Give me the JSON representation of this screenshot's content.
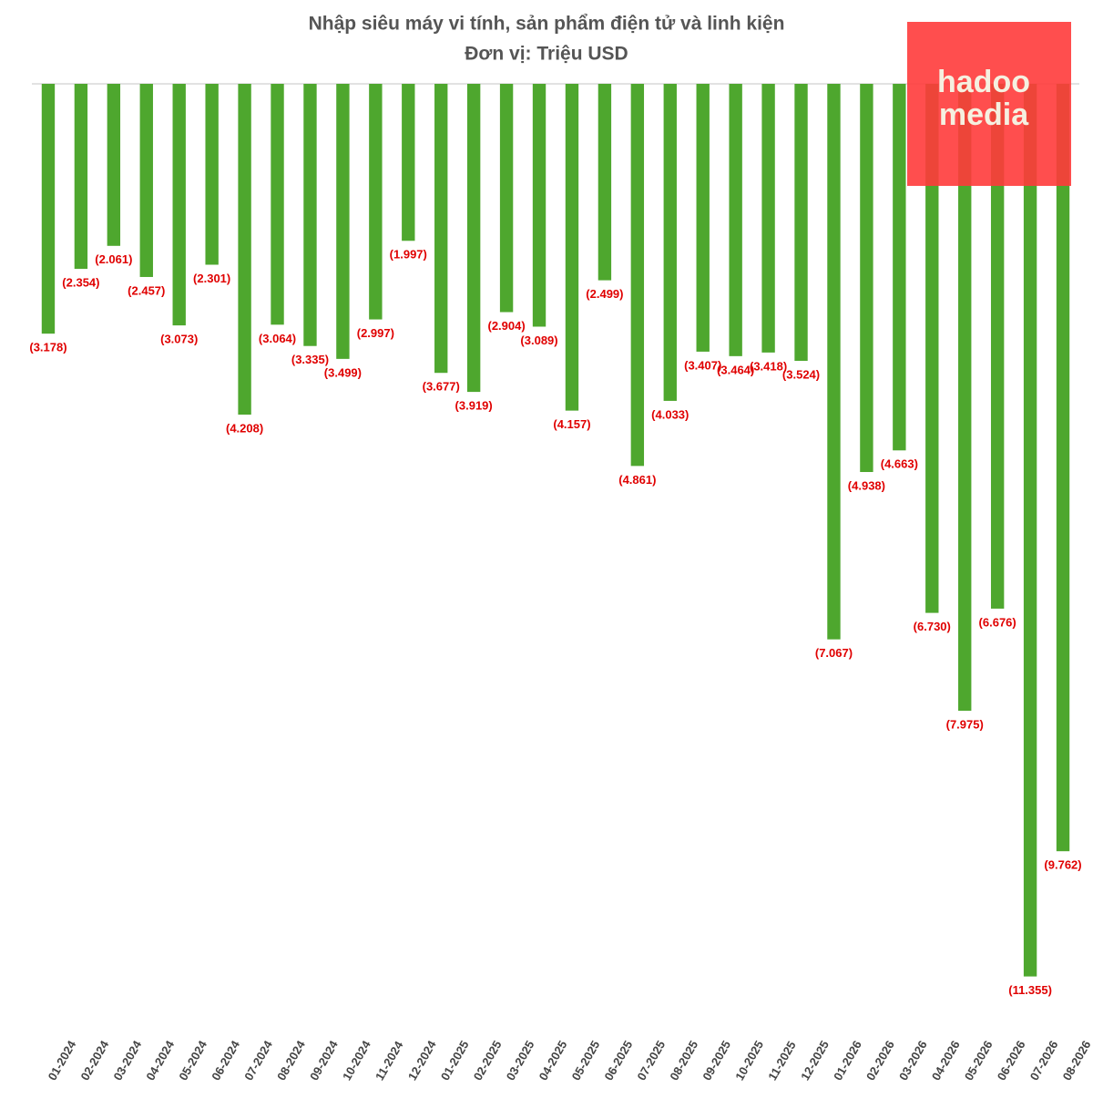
{
  "chart_data": {
    "type": "bar",
    "title": "Nhập siêu máy vi tính, sản phẩm điện tử và linh kiện",
    "subtitle": "Đơn vị: Triệu USD",
    "logo": [
      "hadoo",
      "media"
    ],
    "categories": [
      "01-2024",
      "02-2024",
      "03-2024",
      "04-2024",
      "05-2024",
      "06-2024",
      "07-2024",
      "08-2024",
      "09-2024",
      "10-2024",
      "11-2024",
      "12-2024",
      "01-2025",
      "02-2025",
      "03-2025",
      "04-2025",
      "05-2025",
      "06-2025",
      "07-2025",
      "08-2025",
      "09-2025",
      "10-2025",
      "11-2025",
      "12-2025",
      "01-2026",
      "02-2026",
      "03-2026",
      "04-2026",
      "05-2026",
      "06-2026",
      "07-2026",
      "08-2026"
    ],
    "values": [
      -3178,
      -2354,
      -2061,
      -2457,
      -3073,
      -2301,
      -4208,
      -3064,
      -3335,
      -3499,
      -2997,
      -1997,
      -3677,
      -3919,
      -2904,
      -3089,
      -4157,
      -2499,
      -4861,
      -4033,
      -3407,
      -3464,
      -3418,
      -3524,
      -7067,
      -4938,
      -4663,
      -6730,
      -7975,
      -6676,
      -11355,
      -9762
    ],
    "value_labels": [
      "(3.178)",
      "(2.354)",
      "(2.061)",
      "(2.457)",
      "(3.073)",
      "(2.301)",
      "(4.208)",
      "(3.064)",
      "(3.335)",
      "(3.499)",
      "(2.997)",
      "(1.997)",
      "(3.677)",
      "(3.919)",
      "(2.904)",
      "(3.089)",
      "(4.157)",
      "(2.499)",
      "(4.861)",
      "(4.033)",
      "(3.407)",
      "(3.464)",
      "(3.418)",
      "(3.524)",
      "(7.067)",
      "(4.938)",
      "(4.663)",
      "(6.730)",
      "(7.975)",
      "(6.676)",
      "(11.355)",
      "(9.762)"
    ],
    "color": "#4ea72e",
    "label_color": "#e00000",
    "ylim": [
      -11800,
      0
    ]
  }
}
